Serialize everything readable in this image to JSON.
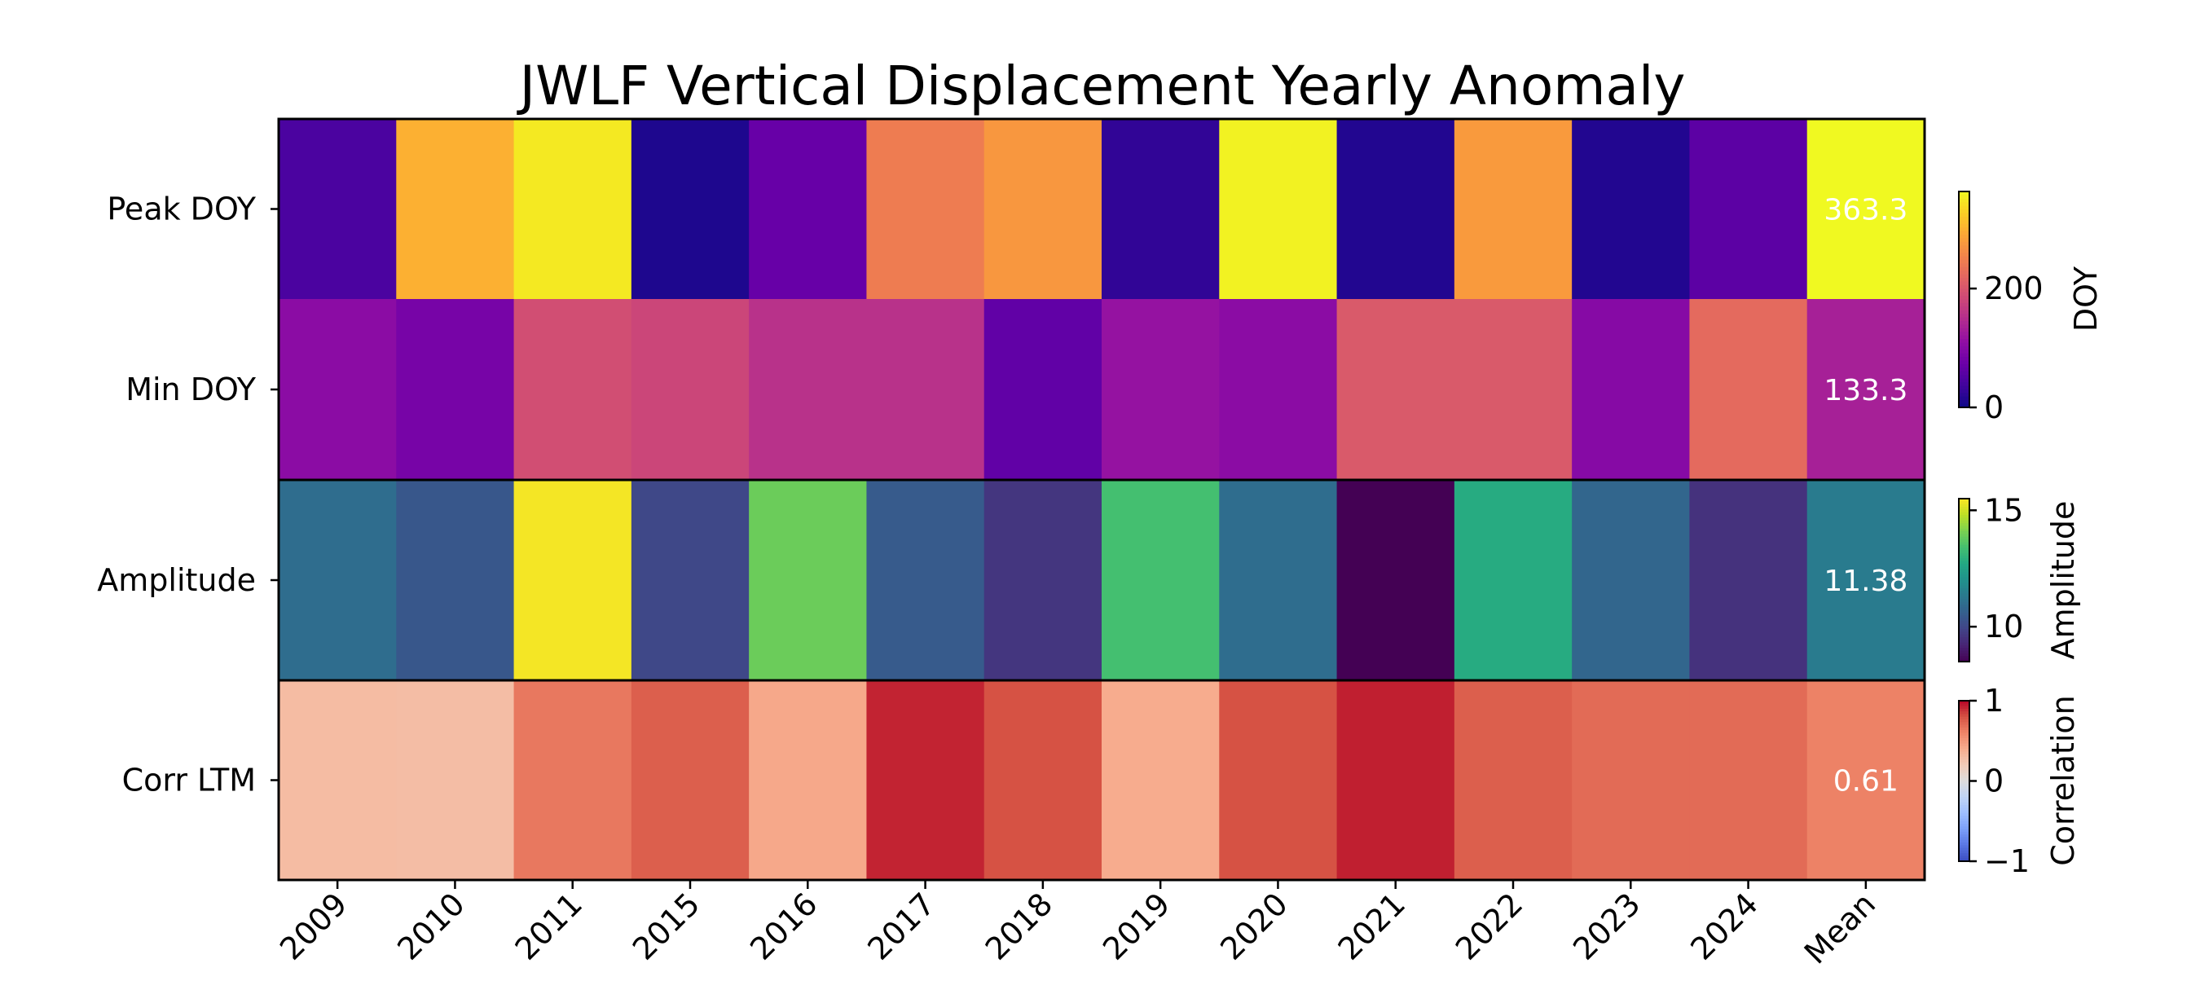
{
  "chart_data": {
    "type": "heatmap",
    "title": "JWLF Vertical Displacement Yearly Anomaly",
    "columns": [
      "2009",
      "2010",
      "2011",
      "2015",
      "2016",
      "2017",
      "2018",
      "2019",
      "2020",
      "2021",
      "2022",
      "2023",
      "2024",
      "Mean"
    ],
    "rows": [
      {
        "label": "Peak DOY",
        "colormap": "plasma",
        "vmin": 0,
        "vmax": 363.3,
        "values": [
          45,
          300,
          350,
          12,
          70,
          245,
          275,
          25,
          357,
          15,
          278,
          15,
          60,
          363.3
        ],
        "mean_label": "363.3"
      },
      {
        "label": "Min DOY",
        "colormap": "plasma",
        "vmin": 0,
        "vmax": 363.3,
        "values": [
          105,
          85,
          190,
          180,
          155,
          155,
          65,
          115,
          105,
          205,
          205,
          100,
          225,
          133.3
        ],
        "mean_label": "133.3"
      },
      {
        "label": "Amplitude",
        "colormap": "viridis",
        "vmin": 8.5,
        "vmax": 15.5,
        "values": [
          11.0,
          10.4,
          15.4,
          10.0,
          13.9,
          10.5,
          9.6,
          13.4,
          11.0,
          8.5,
          12.8,
          10.8,
          9.5,
          11.38
        ],
        "mean_label": "11.38"
      },
      {
        "label": "Corr LTM",
        "colormap": "coolwarm",
        "vmin": -1,
        "vmax": 1,
        "values": [
          0.3,
          0.29,
          0.65,
          0.75,
          0.42,
          0.92,
          0.8,
          0.4,
          0.8,
          0.93,
          0.75,
          0.7,
          0.7,
          0.61
        ],
        "mean_label": "0.61"
      }
    ],
    "colorbars": [
      {
        "label": "DOY",
        "ticks": [
          "0",
          "200"
        ],
        "tick_values": [
          0,
          200
        ],
        "vmin": 0,
        "vmax": 363.3,
        "colormap": "plasma"
      },
      {
        "label": "Amplitude",
        "ticks": [
          "10",
          "15"
        ],
        "tick_values": [
          10,
          15
        ],
        "vmin": 8.5,
        "vmax": 15.5,
        "colormap": "viridis"
      },
      {
        "label": "Correlation",
        "ticks": [
          "−1",
          "0",
          "1"
        ],
        "tick_values": [
          -1,
          0,
          1
        ],
        "vmin": -1,
        "vmax": 1,
        "colormap": "coolwarm"
      }
    ]
  }
}
